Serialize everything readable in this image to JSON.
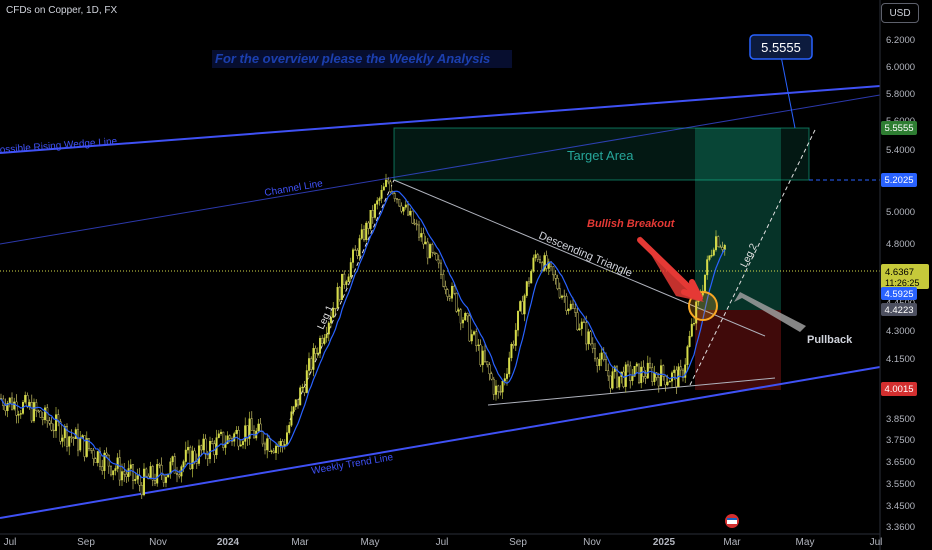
{
  "header": {
    "symbol_title": "CFDs on Copper, 1D, FX",
    "currency": "USD"
  },
  "colors": {
    "background": "#000000",
    "candle_up": "#d6dc4a",
    "candle_down": "#e8e07a",
    "ma_line": "#2962ff",
    "trend_line": "#3f51f5",
    "target_zone": "#1de9b6",
    "stop_zone": "#7b1f2a",
    "annotation_red": "#e53935",
    "annotation_white": "#b0b3bd",
    "price_label_green": "#2e7d32",
    "price_label_blue": "#2962ff",
    "price_label_red": "#d32f2f"
  },
  "annotations": {
    "overview_note": "For the overview please the Weekly Analysis",
    "target_box_value": "5.5555",
    "wedge_line": "ossible Rising Wedge Line",
    "channel_line": "Channel Line",
    "target_area": "Target Area",
    "bullish_breakout": "Bullish Breakout",
    "descending_triangle": "Descending Triangle",
    "leg1": "Leg 1",
    "leg2": "Leg 2",
    "pullback": "Pullback",
    "weekly_trend_line": "Weekly Trend Line"
  },
  "price_labels": {
    "target": "5.5555",
    "entry_zone_top": "5.2025",
    "last_price": "4.6367",
    "countdown": "11:26:25",
    "ma_value": "4.5925",
    "breakout_level": "4.4223",
    "stop": "4.0015"
  },
  "chart_data": {
    "type": "candlestick",
    "title": "CFDs on Copper, 1D, FX",
    "y_axis": {
      "ticks": [
        "6.2000",
        "6.0000",
        "5.8000",
        "5.6000",
        "5.4000",
        "5.2000",
        "5.0000",
        "4.8000",
        "4.6000",
        "4.4500",
        "4.3000",
        "4.1500",
        "4.0000",
        "3.8500",
        "3.7500",
        "3.6500",
        "3.5500",
        "3.4500",
        "3.3600"
      ],
      "range": [
        3.36,
        6.24
      ]
    },
    "x_axis": {
      "ticks": [
        "Jul",
        "Sep",
        "Nov",
        "2024",
        "Mar",
        "May",
        "Jul",
        "Sep",
        "Nov",
        "2025",
        "Mar",
        "May",
        "Jul"
      ]
    },
    "key_points": [
      {
        "date": "2023-07",
        "price": 3.9
      },
      {
        "date": "2023-10",
        "price": 3.55
      },
      {
        "date": "2024-01",
        "price": 3.8
      },
      {
        "date": "2024-02",
        "price": 3.72
      },
      {
        "date": "2024-05",
        "price": 5.2
      },
      {
        "date": "2024-07",
        "price": 4.4
      },
      {
        "date": "2024-08",
        "price": 3.95
      },
      {
        "date": "2024-09",
        "price": 4.75
      },
      {
        "date": "2024-10",
        "price": 4.4
      },
      {
        "date": "2024-11",
        "price": 4.05
      },
      {
        "date": "2024-12",
        "price": 4.08
      },
      {
        "date": "2025-01",
        "price": 4.05
      },
      {
        "date": "2025-02",
        "price": 4.85
      },
      {
        "date": "2025-03",
        "price": 4.6367
      }
    ],
    "levels": {
      "target": 5.5555,
      "entry_zone_top": 5.2025,
      "last_price": 4.6367,
      "ma": 4.5925,
      "breakout": 4.4223,
      "stop": 4.0015
    },
    "grid": false,
    "legend": "none"
  }
}
